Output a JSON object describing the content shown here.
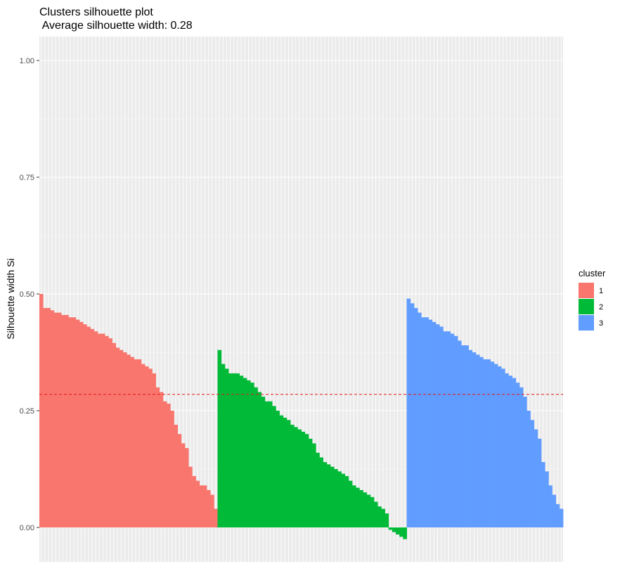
{
  "chart_data": {
    "type": "bar",
    "title": "Clusters silhouette plot",
    "subtitle": " Average silhouette width: 0.28",
    "xlabel": "",
    "ylabel": "Silhouette width Si",
    "ylim": [
      -0.07,
      1.05
    ],
    "yticks": [
      0.0,
      0.25,
      0.5,
      0.75,
      1.0
    ],
    "ytick_labels": [
      "0.00",
      "0.25",
      "0.50",
      "0.75",
      "1.00"
    ],
    "grid": true,
    "legend": {
      "title": "cluster",
      "position": "right"
    },
    "average_line": {
      "value": 0.285,
      "color": "#e31a1c",
      "style": "dashed"
    },
    "series": [
      {
        "name": "1",
        "color": "#F8766D",
        "values": [
          0.5,
          0.47,
          0.47,
          0.465,
          0.46,
          0.46,
          0.455,
          0.455,
          0.45,
          0.45,
          0.445,
          0.44,
          0.435,
          0.43,
          0.425,
          0.42,
          0.415,
          0.415,
          0.41,
          0.405,
          0.395,
          0.385,
          0.38,
          0.375,
          0.37,
          0.365,
          0.36,
          0.36,
          0.35,
          0.345,
          0.34,
          0.33,
          0.3,
          0.29,
          0.27,
          0.265,
          0.25,
          0.22,
          0.2,
          0.18,
          0.17,
          0.13,
          0.11,
          0.1,
          0.09,
          0.09,
          0.08,
          0.07,
          0.04
        ]
      },
      {
        "name": "2",
        "color": "#00BA38",
        "values": [
          0.38,
          0.35,
          0.34,
          0.33,
          0.33,
          0.33,
          0.325,
          0.32,
          0.315,
          0.31,
          0.3,
          0.29,
          0.28,
          0.27,
          0.27,
          0.26,
          0.25,
          0.24,
          0.235,
          0.23,
          0.22,
          0.215,
          0.21,
          0.205,
          0.2,
          0.19,
          0.18,
          0.16,
          0.15,
          0.14,
          0.135,
          0.13,
          0.125,
          0.12,
          0.115,
          0.11,
          0.1,
          0.09,
          0.085,
          0.08,
          0.075,
          0.07,
          0.065,
          0.055,
          0.045,
          0.04,
          0.03,
          -0.005,
          -0.01,
          -0.015,
          -0.02,
          -0.025
        ]
      },
      {
        "name": "3",
        "color": "#619CFF",
        "values": [
          0.49,
          0.48,
          0.47,
          0.46,
          0.45,
          0.45,
          0.445,
          0.44,
          0.435,
          0.43,
          0.42,
          0.42,
          0.415,
          0.41,
          0.4,
          0.39,
          0.39,
          0.38,
          0.375,
          0.37,
          0.365,
          0.36,
          0.36,
          0.355,
          0.35,
          0.345,
          0.34,
          0.33,
          0.325,
          0.32,
          0.31,
          0.3,
          0.28,
          0.25,
          0.23,
          0.21,
          0.19,
          0.14,
          0.12,
          0.09,
          0.07,
          0.05,
          0.04
        ]
      }
    ]
  }
}
